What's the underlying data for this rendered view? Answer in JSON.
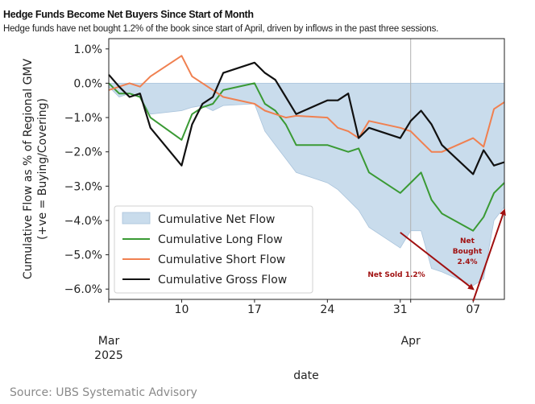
{
  "header": {
    "title": "Hedge Funds Become Net Buyers Since Start of Month",
    "subtitle": "Hedge funds have net bought 1.2% of the book since start of April, driven by inflows in the past three sessions."
  },
  "footer": {
    "source": "Source: UBS Systematic Advisory"
  },
  "chart_data": {
    "type": "line",
    "xlabel": "date",
    "ylabel_lines": [
      "Cumulative Flow as % of Regional GMV",
      "(+ve = Buying/Covering)"
    ],
    "ylim": [
      -6.3,
      1.3
    ],
    "yticks": [
      1.0,
      0.0,
      -1.0,
      -2.0,
      -3.0,
      -4.0,
      -5.0,
      -6.0
    ],
    "ytick_labels": [
      "1.0%",
      "0.0%",
      "−1.0%",
      "−2.0%",
      "−3.0%",
      "−4.0%",
      "−5.0%",
      "−6.0%"
    ],
    "x_start": "2025-03-03",
    "x_end": "2025-04-10",
    "xticks": [
      {
        "date": "2025-03-03",
        "label": "Mar",
        "sublabel": "2025"
      },
      {
        "date": "2025-03-10",
        "label": "10"
      },
      {
        "date": "2025-03-17",
        "label": "17"
      },
      {
        "date": "2025-03-24",
        "label": "24"
      },
      {
        "date": "2025-03-31",
        "label": "31"
      },
      {
        "date": "2025-04-01",
        "label": "Apr"
      },
      {
        "date": "2025-04-07",
        "label": "07"
      }
    ],
    "vline_date": "2025-04-01",
    "dates": [
      "2025-03-03",
      "2025-03-04",
      "2025-03-05",
      "2025-03-06",
      "2025-03-07",
      "2025-03-10",
      "2025-03-11",
      "2025-03-12",
      "2025-03-13",
      "2025-03-14",
      "2025-03-17",
      "2025-03-18",
      "2025-03-19",
      "2025-03-20",
      "2025-03-21",
      "2025-03-24",
      "2025-03-25",
      "2025-03-26",
      "2025-03-27",
      "2025-03-28",
      "2025-03-31",
      "2025-04-01",
      "2025-04-02",
      "2025-04-03",
      "2025-04-04",
      "2025-04-07",
      "2025-04-08",
      "2025-04-09",
      "2025-04-10"
    ],
    "series": [
      {
        "name": "Cumulative Net Flow",
        "kind": "area",
        "color": "#c9dcec",
        "edge": "#a9c3db",
        "values": [
          -0.1,
          -0.4,
          -0.3,
          -0.4,
          -0.9,
          -0.8,
          -0.7,
          -0.65,
          -0.8,
          -0.65,
          -0.6,
          -1.4,
          -1.8,
          -2.2,
          -2.6,
          -2.9,
          -3.1,
          -3.4,
          -3.7,
          -4.2,
          -4.8,
          -4.3,
          -4.3,
          -5.4,
          -5.5,
          -5.9,
          -5.7,
          -4.0,
          -3.6
        ]
      },
      {
        "name": "Cumulative Long Flow",
        "kind": "line",
        "color": "#3a9a34",
        "values": [
          0.0,
          -0.3,
          -0.3,
          -0.4,
          -1.0,
          -1.65,
          -0.9,
          -0.7,
          -0.6,
          -0.2,
          0.0,
          -0.6,
          -0.8,
          -1.2,
          -1.8,
          -1.8,
          -1.9,
          -2.0,
          -1.9,
          -2.6,
          -3.2,
          -2.9,
          -2.6,
          -3.4,
          -3.8,
          -4.3,
          -3.9,
          -3.2,
          -2.9
        ]
      },
      {
        "name": "Cumulative Short Flow",
        "kind": "line",
        "color": "#f08050",
        "values": [
          -0.2,
          -0.1,
          0.0,
          -0.1,
          0.2,
          0.8,
          0.2,
          0.0,
          -0.2,
          -0.4,
          -0.6,
          -0.8,
          -0.9,
          -1.0,
          -0.95,
          -1.0,
          -1.3,
          -1.4,
          -1.6,
          -1.1,
          -1.3,
          -1.4,
          -1.7,
          -2.0,
          -2.0,
          -1.6,
          -1.85,
          -0.75,
          -0.55
        ]
      },
      {
        "name": "Cumulative Gross Flow",
        "kind": "line",
        "color": "#111111",
        "values": [
          0.25,
          -0.1,
          -0.4,
          -0.3,
          -1.3,
          -2.4,
          -1.2,
          -0.6,
          -0.4,
          0.3,
          0.6,
          0.3,
          0.1,
          -0.4,
          -0.9,
          -0.5,
          -0.5,
          -0.3,
          -1.6,
          -1.3,
          -1.6,
          -1.1,
          -0.8,
          -1.2,
          -1.8,
          -2.65,
          -1.95,
          -2.4,
          -2.3
        ]
      }
    ],
    "legend": {
      "position": "lower-left"
    },
    "annotations": [
      {
        "text": "Net Sold 1.2%",
        "color": "#a01010",
        "arrow_from": [
          "2025-03-31",
          -4.35
        ],
        "arrow_to": [
          "2025-04-07",
          -6.0
        ]
      },
      {
        "text": "Net Bought 2.4%",
        "lines": [
          "Net",
          "Bought",
          "2.4%"
        ],
        "color": "#a01010",
        "arrow_from": [
          "2025-04-07",
          -6.35
        ],
        "arrow_to": [
          "2025-04-10",
          -3.7
        ]
      }
    ]
  }
}
